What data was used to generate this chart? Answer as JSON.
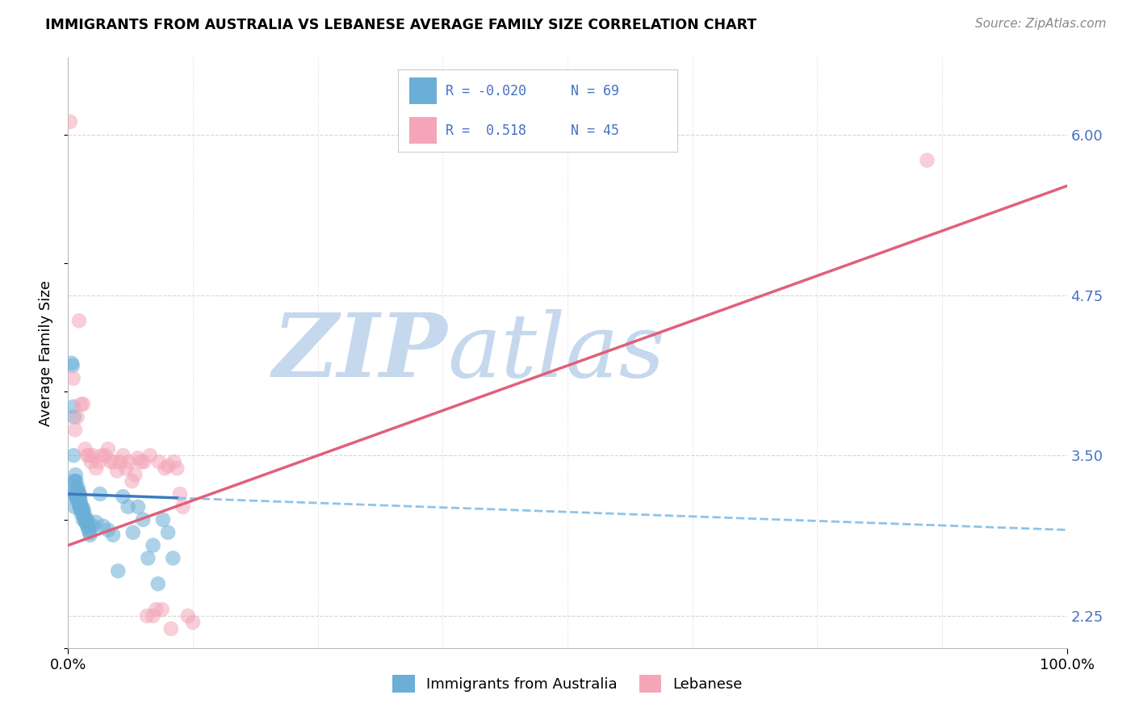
{
  "title": "IMMIGRANTS FROM AUSTRALIA VS LEBANESE AVERAGE FAMILY SIZE CORRELATION CHART",
  "source": "Source: ZipAtlas.com",
  "ylabel": "Average Family Size",
  "legend_label_blue": "Immigrants from Australia",
  "legend_label_pink": "Lebanese",
  "R_blue": -0.02,
  "N_blue": 69,
  "R_pink": 0.518,
  "N_pink": 45,
  "blue_color": "#6baed6",
  "pink_color": "#f4a6b8",
  "blue_line_solid_color": "#3a7bbf",
  "blue_line_dash_color": "#8ec4e8",
  "pink_line_color": "#e0607a",
  "watermark_zip_color": "#c5d8ed",
  "watermark_atlas_color": "#c5d8ed",
  "background_color": "#ffffff",
  "grid_color": "#cccccc",
  "ytick_values": [
    2.25,
    3.5,
    4.75,
    6.0
  ],
  "ytick_color": "#4472c4",
  "blue_scatter_x": [
    0.18,
    0.35,
    0.45,
    0.52,
    0.55,
    0.6,
    0.62,
    0.65,
    0.68,
    0.72,
    0.75,
    0.78,
    0.8,
    0.82,
    0.85,
    0.88,
    0.9,
    0.92,
    0.95,
    0.98,
    1.0,
    1.02,
    1.05,
    1.08,
    1.1,
    1.12,
    1.15,
    1.18,
    1.2,
    1.22,
    1.25,
    1.28,
    1.3,
    1.35,
    1.4,
    1.45,
    1.5,
    1.55,
    1.6,
    1.65,
    1.7,
    1.75,
    1.8,
    1.85,
    1.9,
    1.95,
    2.0,
    2.05,
    2.1,
    2.15,
    2.2,
    2.5,
    2.8,
    3.2,
    3.5,
    4.0,
    4.5,
    5.0,
    5.5,
    6.0,
    6.5,
    7.0,
    7.5,
    8.0,
    8.5,
    9.0,
    9.5,
    10.0,
    10.5
  ],
  "blue_scatter_y": [
    3.2,
    4.22,
    4.2,
    3.88,
    3.5,
    3.8,
    3.3,
    3.1,
    3.3,
    3.2,
    3.35,
    3.25,
    3.18,
    3.3,
    3.2,
    3.22,
    3.15,
    3.18,
    3.22,
    3.25,
    3.2,
    3.15,
    3.22,
    3.18,
    3.12,
    3.2,
    3.1,
    3.18,
    3.1,
    3.15,
    3.08,
    3.12,
    3.05,
    3.08,
    3.1,
    3.05,
    3.0,
    3.08,
    3.05,
    3.02,
    3.0,
    2.98,
    3.0,
    2.98,
    2.95,
    3.0,
    2.95,
    2.92,
    2.95,
    2.9,
    2.88,
    2.95,
    2.98,
    3.2,
    2.95,
    2.92,
    2.88,
    2.6,
    3.18,
    3.1,
    2.9,
    3.1,
    3.0,
    2.7,
    2.8,
    2.5,
    3.0,
    2.9,
    2.7
  ],
  "pink_scatter_x": [
    0.2,
    0.5,
    0.7,
    0.9,
    1.1,
    1.3,
    1.5,
    1.7,
    1.9,
    2.1,
    2.3,
    2.5,
    2.8,
    3.1,
    3.4,
    3.7,
    4.0,
    4.3,
    4.6,
    4.9,
    5.2,
    5.5,
    5.8,
    6.1,
    6.4,
    6.7,
    7.0,
    7.3,
    7.6,
    7.9,
    8.2,
    8.5,
    8.8,
    9.1,
    9.4,
    9.7,
    10.0,
    10.3,
    10.6,
    10.9,
    11.2,
    11.5,
    12.0,
    12.5,
    86.0
  ],
  "pink_scatter_y": [
    6.1,
    4.1,
    3.7,
    3.8,
    4.55,
    3.9,
    3.9,
    3.55,
    3.5,
    3.5,
    3.45,
    3.5,
    3.4,
    3.45,
    3.5,
    3.5,
    3.55,
    3.45,
    3.45,
    3.38,
    3.45,
    3.5,
    3.4,
    3.45,
    3.3,
    3.35,
    3.48,
    3.45,
    3.45,
    2.25,
    3.5,
    2.25,
    2.3,
    3.45,
    2.3,
    3.4,
    3.42,
    2.15,
    3.45,
    3.4,
    3.2,
    3.1,
    2.25,
    2.2,
    5.8
  ],
  "blue_line_x0": 0.0,
  "blue_line_x_solid_end": 11.0,
  "blue_line_x_dash_end": 100.0,
  "blue_line_y0": 3.2,
  "blue_line_slope": -0.0028,
  "pink_line_x0": 0.0,
  "pink_line_x1": 100.0,
  "pink_line_y0": 2.8,
  "pink_line_y1": 5.6,
  "xmin": 0.0,
  "xmax": 100.0,
  "ymin": 2.0,
  "ymax": 6.6
}
